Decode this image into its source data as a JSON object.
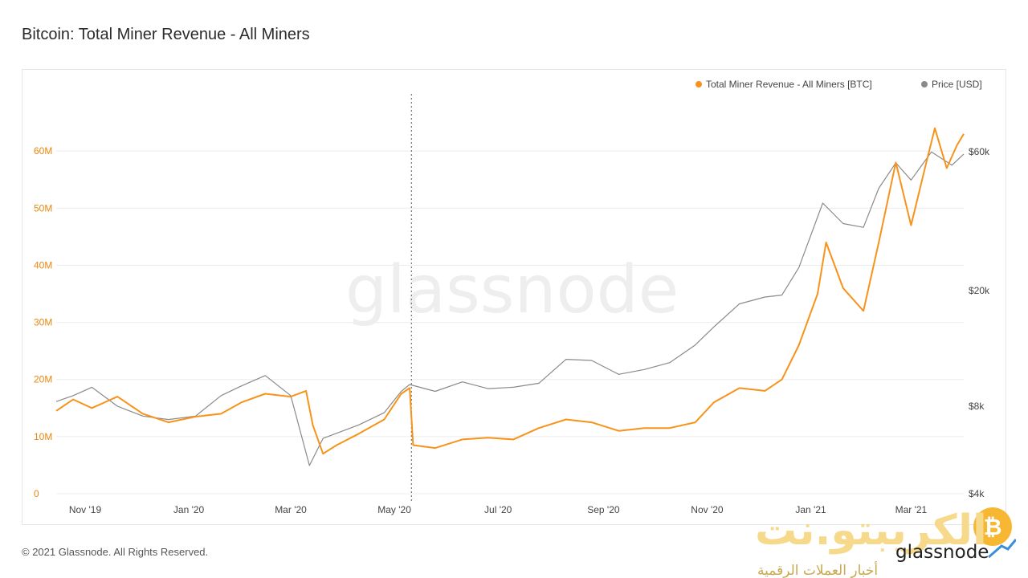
{
  "page": {
    "title": "Bitcoin: Total Miner Revenue - All Miners",
    "footer": "© 2021 Glassnode. All Rights Reserved.",
    "watermark": "glassnode",
    "brand_overlay": {
      "arabic_name": "الكريبتو.نت",
      "arabic_tagline": "أخبار العملات الرقمية",
      "glassnode_text": "glassnode"
    }
  },
  "chart_data": {
    "type": "line",
    "title": "Bitcoin: Total Miner Revenue - All Miners",
    "legend_position": "top-right",
    "grid": true,
    "x_ticks": [
      "Nov '19",
      "Jan '20",
      "Mar '20",
      "May '20",
      "Jul '20",
      "Sep '20",
      "Nov '20",
      "Jan '21",
      "Mar '21"
    ],
    "x_tick_dates": [
      "2019-11-01",
      "2020-01-01",
      "2020-03-01",
      "2020-05-01",
      "2020-07-01",
      "2020-09-01",
      "2020-11-01",
      "2021-01-01",
      "2021-03-01"
    ],
    "x_range": [
      "2019-10-15",
      "2021-04-01"
    ],
    "halving_marker_date": "2020-05-11",
    "left_axis": {
      "ticks": [
        "0",
        "10M",
        "20M",
        "30M",
        "40M",
        "50M",
        "60M"
      ],
      "values": [
        0,
        10000000,
        20000000,
        30000000,
        40000000,
        50000000,
        60000000
      ],
      "ylim": [
        0,
        70000000
      ],
      "color": "#e8870f"
    },
    "right_axis": {
      "scale": "log",
      "ticks": [
        "$4k",
        "$8k",
        "$20k",
        "$60k"
      ],
      "values": [
        4000,
        8000,
        20000,
        60000
      ],
      "ylim": [
        4000,
        95000
      ]
    },
    "series": [
      {
        "name": "Total Miner Revenue - All Miners [BTC]",
        "axis": "left",
        "color": "#f7931a",
        "points": [
          [
            "2019-10-15",
            14500000
          ],
          [
            "2019-10-25",
            16500000
          ],
          [
            "2019-11-05",
            15000000
          ],
          [
            "2019-11-20",
            17000000
          ],
          [
            "2019-12-05",
            14000000
          ],
          [
            "2019-12-20",
            12500000
          ],
          [
            "2020-01-05",
            13500000
          ],
          [
            "2020-01-20",
            14000000
          ],
          [
            "2020-02-01",
            16000000
          ],
          [
            "2020-02-15",
            17500000
          ],
          [
            "2020-03-01",
            17000000
          ],
          [
            "2020-03-10",
            18000000
          ],
          [
            "2020-03-14",
            12000000
          ],
          [
            "2020-03-20",
            7000000
          ],
          [
            "2020-03-28",
            8500000
          ],
          [
            "2020-04-10",
            10500000
          ],
          [
            "2020-04-25",
            13000000
          ],
          [
            "2020-05-05",
            17500000
          ],
          [
            "2020-05-10",
            18500000
          ],
          [
            "2020-05-12",
            8500000
          ],
          [
            "2020-05-25",
            8000000
          ],
          [
            "2020-06-10",
            9500000
          ],
          [
            "2020-06-25",
            9800000
          ],
          [
            "2020-07-10",
            9500000
          ],
          [
            "2020-07-25",
            11500000
          ],
          [
            "2020-08-10",
            13000000
          ],
          [
            "2020-08-25",
            12500000
          ],
          [
            "2020-09-10",
            11000000
          ],
          [
            "2020-09-25",
            11500000
          ],
          [
            "2020-10-10",
            11500000
          ],
          [
            "2020-10-25",
            12500000
          ],
          [
            "2020-11-05",
            16000000
          ],
          [
            "2020-11-20",
            18500000
          ],
          [
            "2020-12-05",
            18000000
          ],
          [
            "2020-12-15",
            20000000
          ],
          [
            "2020-12-25",
            26000000
          ],
          [
            "2021-01-05",
            35000000
          ],
          [
            "2021-01-10",
            44000000
          ],
          [
            "2021-01-20",
            36000000
          ],
          [
            "2021-02-01",
            32000000
          ],
          [
            "2021-02-10",
            44000000
          ],
          [
            "2021-02-20",
            58000000
          ],
          [
            "2021-03-01",
            47000000
          ],
          [
            "2021-03-10",
            58000000
          ],
          [
            "2021-03-15",
            64000000
          ],
          [
            "2021-03-22",
            57000000
          ],
          [
            "2021-03-28",
            61000000
          ],
          [
            "2021-04-01",
            63000000
          ]
        ]
      },
      {
        "name": "Price [USD]",
        "axis": "right",
        "color": "#8a8a8a",
        "points": [
          [
            "2019-10-15",
            8300
          ],
          [
            "2019-10-25",
            8700
          ],
          [
            "2019-11-05",
            9300
          ],
          [
            "2019-11-20",
            8000
          ],
          [
            "2019-12-05",
            7400
          ],
          [
            "2019-12-20",
            7200
          ],
          [
            "2020-01-05",
            7400
          ],
          [
            "2020-01-20",
            8700
          ],
          [
            "2020-02-01",
            9400
          ],
          [
            "2020-02-15",
            10200
          ],
          [
            "2020-03-01",
            8700
          ],
          [
            "2020-03-12",
            5000
          ],
          [
            "2020-03-20",
            6200
          ],
          [
            "2020-04-10",
            6900
          ],
          [
            "2020-04-25",
            7600
          ],
          [
            "2020-05-05",
            9000
          ],
          [
            "2020-05-10",
            9500
          ],
          [
            "2020-05-25",
            9000
          ],
          [
            "2020-06-10",
            9700
          ],
          [
            "2020-06-25",
            9200
          ],
          [
            "2020-07-10",
            9300
          ],
          [
            "2020-07-25",
            9600
          ],
          [
            "2020-08-10",
            11600
          ],
          [
            "2020-08-25",
            11500
          ],
          [
            "2020-09-10",
            10300
          ],
          [
            "2020-09-25",
            10700
          ],
          [
            "2020-10-10",
            11300
          ],
          [
            "2020-10-25",
            13000
          ],
          [
            "2020-11-05",
            15000
          ],
          [
            "2020-11-20",
            18000
          ],
          [
            "2020-12-05",
            19000
          ],
          [
            "2020-12-15",
            19300
          ],
          [
            "2020-12-25",
            24000
          ],
          [
            "2021-01-08",
            40000
          ],
          [
            "2021-01-20",
            34000
          ],
          [
            "2021-02-01",
            33000
          ],
          [
            "2021-02-10",
            45000
          ],
          [
            "2021-02-20",
            55000
          ],
          [
            "2021-03-01",
            48000
          ],
          [
            "2021-03-13",
            60000
          ],
          [
            "2021-03-25",
            54000
          ],
          [
            "2021-04-01",
            59000
          ]
        ]
      }
    ]
  }
}
